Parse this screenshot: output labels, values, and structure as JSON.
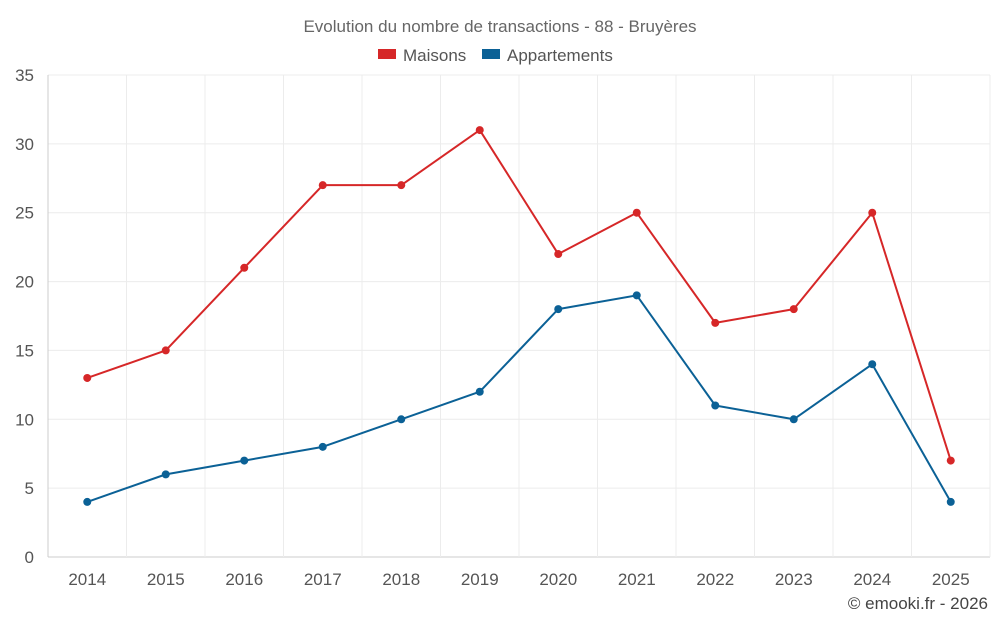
{
  "chart_data": {
    "type": "line",
    "title": "Evolution du nombre de transactions - 88 - Bruyères",
    "categories": [
      "2014",
      "2015",
      "2016",
      "2017",
      "2018",
      "2019",
      "2020",
      "2021",
      "2022",
      "2023",
      "2024",
      "2025"
    ],
    "series": [
      {
        "name": "Maisons",
        "color": "#d62728",
        "values": [
          13,
          15,
          21,
          27,
          27,
          31,
          22,
          25,
          17,
          18,
          25,
          7
        ]
      },
      {
        "name": "Appartements",
        "color": "#0b6196",
        "values": [
          4,
          6,
          7,
          8,
          10,
          12,
          18,
          19,
          11,
          10,
          14,
          4
        ]
      }
    ],
    "ylim": [
      0,
      35
    ],
    "yticks": [
      "0",
      "5",
      "10",
      "15",
      "20",
      "25",
      "30",
      "35"
    ],
    "grid": true,
    "legend_position": "top-center",
    "xlabel": "",
    "ylabel": ""
  },
  "credit": "© emooki.fr - 2026"
}
